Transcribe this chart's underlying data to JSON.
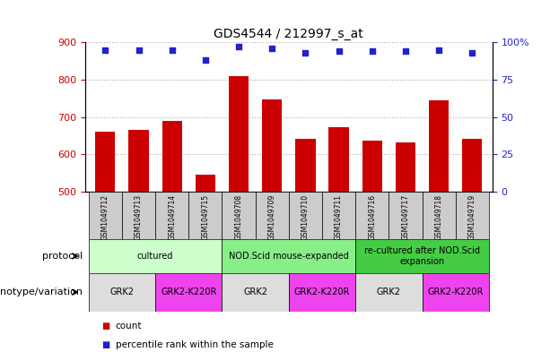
{
  "title": "GDS4544 / 212997_s_at",
  "samples": [
    "GSM1049712",
    "GSM1049713",
    "GSM1049714",
    "GSM1049715",
    "GSM1049708",
    "GSM1049709",
    "GSM1049710",
    "GSM1049711",
    "GSM1049716",
    "GSM1049717",
    "GSM1049718",
    "GSM1049719"
  ],
  "counts": [
    660,
    665,
    690,
    545,
    810,
    748,
    642,
    672,
    638,
    632,
    745,
    642
  ],
  "percentiles": [
    95,
    95,
    95,
    88,
    97,
    96,
    93,
    94,
    94,
    94,
    95,
    93
  ],
  "ylim_left": [
    500,
    900
  ],
  "ylim_right": [
    0,
    100
  ],
  "yticks_left": [
    500,
    600,
    700,
    800,
    900
  ],
  "yticks_right": [
    0,
    25,
    50,
    75,
    100
  ],
  "bar_color": "#cc0000",
  "dot_color": "#2222cc",
  "protocol_groups": [
    {
      "label": "cultured",
      "start": 0,
      "end": 4,
      "color": "#ccffcc"
    },
    {
      "label": "NOD.Scid mouse-expanded",
      "start": 4,
      "end": 8,
      "color": "#88ee88"
    },
    {
      "label": "re-cultured after NOD.Scid\nexpansion",
      "start": 8,
      "end": 12,
      "color": "#44cc44"
    }
  ],
  "genotype_groups": [
    {
      "label": "GRK2",
      "start": 0,
      "end": 2,
      "color": "#dddddd"
    },
    {
      "label": "GRK2-K220R",
      "start": 2,
      "end": 4,
      "color": "#ee44ee"
    },
    {
      "label": "GRK2",
      "start": 4,
      "end": 6,
      "color": "#dddddd"
    },
    {
      "label": "GRK2-K220R",
      "start": 6,
      "end": 8,
      "color": "#ee44ee"
    },
    {
      "label": "GRK2",
      "start": 8,
      "end": 10,
      "color": "#dddddd"
    },
    {
      "label": "GRK2-K220R",
      "start": 10,
      "end": 12,
      "color": "#ee44ee"
    }
  ],
  "legend_items": [
    {
      "label": "count",
      "color": "#cc0000"
    },
    {
      "label": "percentile rank within the sample",
      "color": "#2222cc"
    }
  ],
  "bar_width": 0.6,
  "background_color": "#ffffff",
  "grid_color": "#aaaaaa",
  "sample_cell_color": "#cccccc"
}
